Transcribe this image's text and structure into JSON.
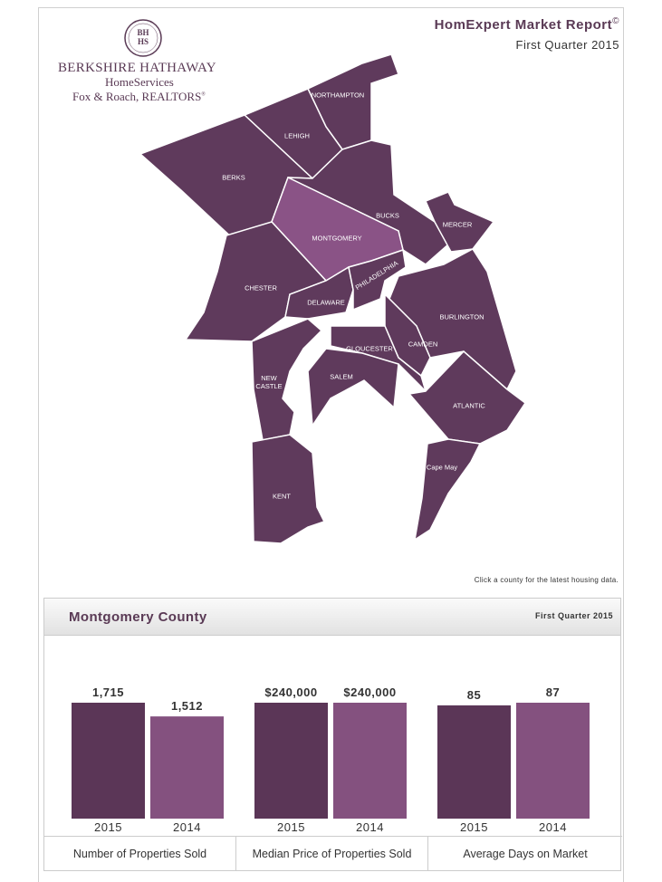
{
  "header": {
    "logo_monogram": [
      "BH",
      "HS"
    ],
    "company": "BERKSHIRE HATHAWAY",
    "company_line2": "HomeServices",
    "company_line3": "Fox & Roach, REALTORS",
    "registered": "®",
    "report_title": "HomExpert Market Report",
    "copyright": "©",
    "period": "First Quarter 2015"
  },
  "map": {
    "counties": [
      "NORTHAMPTON",
      "LEHIGH",
      "BERKS",
      "BUCKS",
      "MERCER",
      "MONTGOMERY",
      "CHESTER",
      "DELAWARE",
      "PHILADELPHIA",
      "BURLINGTON",
      "CAMDEN",
      "GLOUCESTER",
      "SALEM",
      "NEW CASTLE",
      "ATLANTIC",
      "Cape May",
      "KENT"
    ],
    "selected": "MONTGOMERY",
    "color": "#5f3a5c",
    "selected_color": "#8a5386",
    "hint": "Click a county for the latest housing data."
  },
  "panel": {
    "county": "Montgomery County",
    "period": "First Quarter 2015"
  },
  "charts": [
    {
      "type": "bar",
      "title": "Number of Properties Sold",
      "categories": [
        "2015",
        "2014"
      ],
      "values": [
        1715,
        1512
      ],
      "value_labels": [
        "1,715",
        "1,512"
      ],
      "colors": [
        "#5b3657",
        "#84517f"
      ]
    },
    {
      "type": "bar",
      "title": "Median Price of Properties Sold",
      "categories": [
        "2015",
        "2014"
      ],
      "values": [
        240000,
        240000
      ],
      "value_labels": [
        "$240,000",
        "$240,000"
      ],
      "colors": [
        "#5b3657",
        "#84517f"
      ]
    },
    {
      "type": "bar",
      "title": "Average Days on Market",
      "categories": [
        "2015",
        "2014"
      ],
      "values": [
        85,
        87
      ],
      "colors": [
        "#5b3657",
        "#84517f"
      ]
    }
  ]
}
